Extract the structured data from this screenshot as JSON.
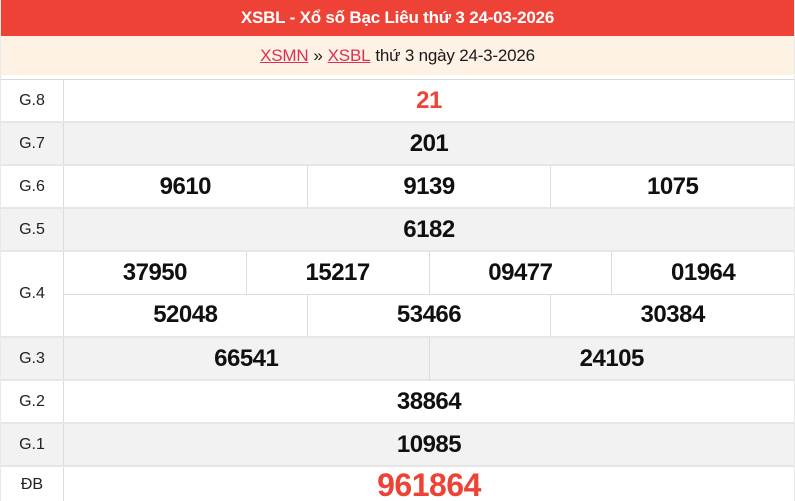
{
  "header": {
    "title": "XSBL - Xổ số Bạc Liêu thứ 3 24-03-2026",
    "bg_color": "#ee4236",
    "text_color": "#ffffff"
  },
  "breadcrumb": {
    "link_region": "XSMN",
    "separator": "»",
    "link_province": "XSBL",
    "suffix": "thứ 3 ngày 24-3-2026",
    "link_color": "#dc2f55",
    "bg_color": "#fdf2e4"
  },
  "colors": {
    "accent_red": "#ee4236",
    "row_alt_bg": "#f2f2f2",
    "border": "#dcdcdc",
    "number_text": "#101010"
  },
  "table": {
    "rows": [
      {
        "label": "G.8",
        "lines": [
          [
            "21"
          ]
        ],
        "highlight": true
      },
      {
        "label": "G.7",
        "lines": [
          [
            "201"
          ]
        ]
      },
      {
        "label": "G.6",
        "lines": [
          [
            "9610",
            "9139",
            "1075"
          ]
        ]
      },
      {
        "label": "G.5",
        "lines": [
          [
            "6182"
          ]
        ]
      },
      {
        "label": "G.4",
        "lines": [
          [
            "37950",
            "15217",
            "09477",
            "01964"
          ],
          [
            "52048",
            "53466",
            "30384"
          ]
        ]
      },
      {
        "label": "G.3",
        "lines": [
          [
            "66541",
            "24105"
          ]
        ]
      },
      {
        "label": "G.2",
        "lines": [
          [
            "38864"
          ]
        ]
      },
      {
        "label": "G.1",
        "lines": [
          [
            "10985"
          ]
        ]
      },
      {
        "label": "ĐB",
        "lines": [
          [
            "961864"
          ]
        ],
        "highlight": true
      }
    ]
  }
}
